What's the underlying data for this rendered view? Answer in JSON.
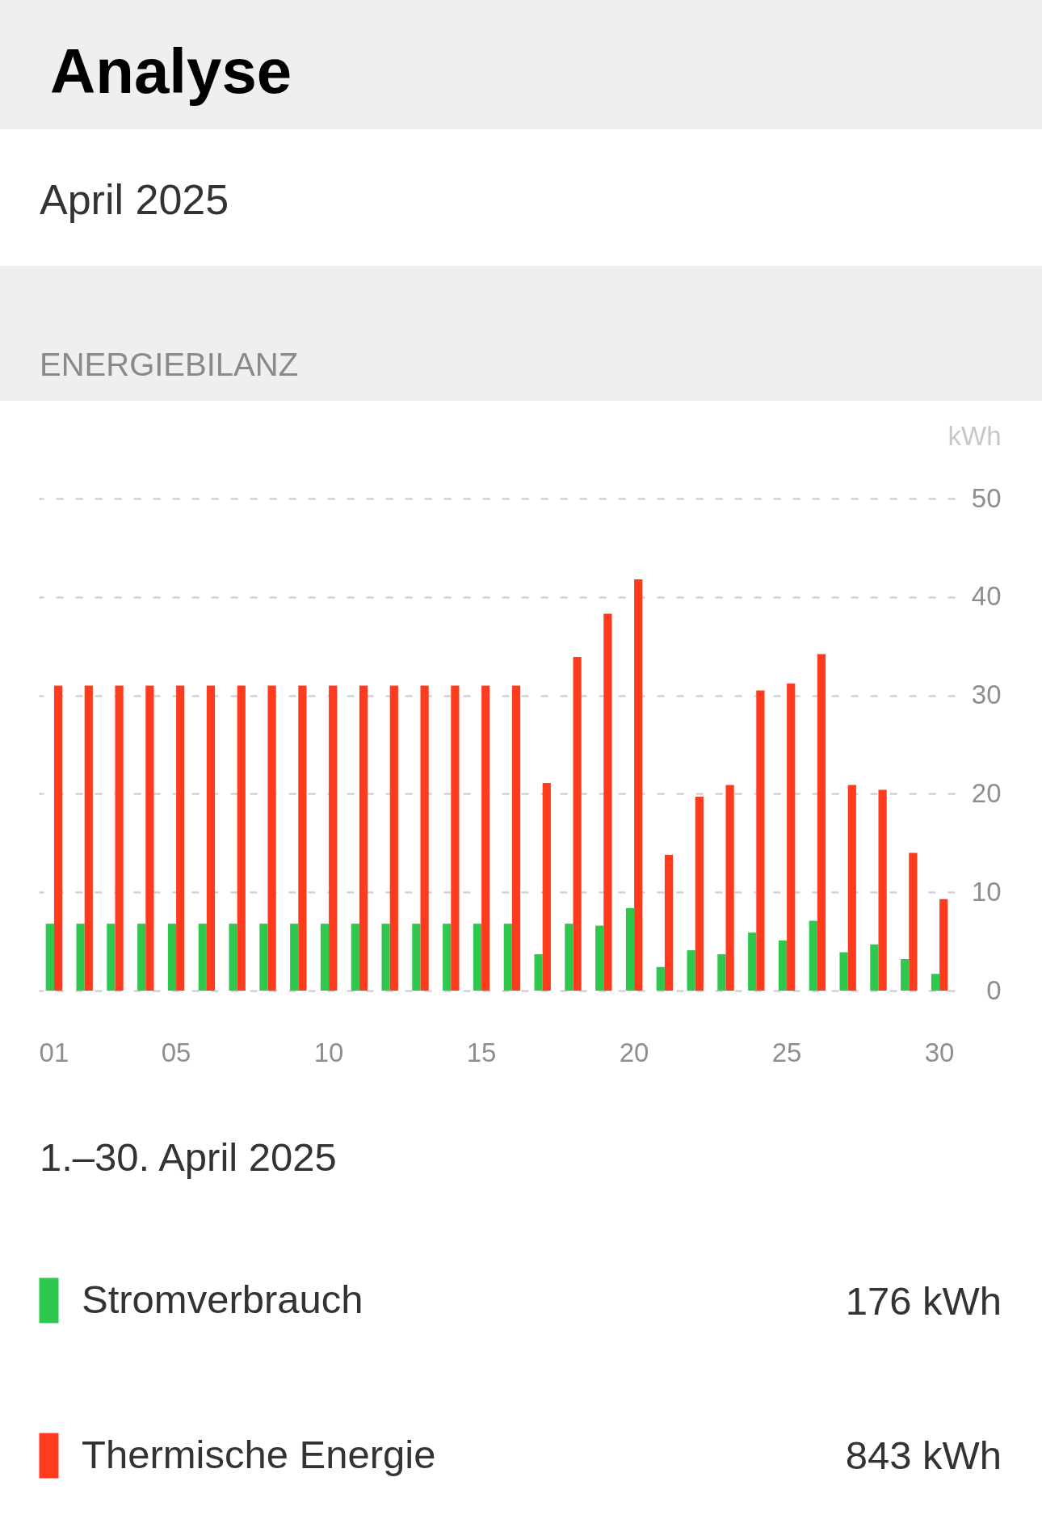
{
  "chart_data": {
    "type": "bar",
    "title": "Analyse",
    "subtitle": "April 2025",
    "ylabel": "kWh",
    "categories": [
      "01",
      null,
      null,
      null,
      "05",
      null,
      null,
      null,
      null,
      "10",
      null,
      null,
      null,
      null,
      "15",
      null,
      null,
      null,
      null,
      "20",
      null,
      null,
      null,
      null,
      "25",
      null,
      null,
      null,
      null,
      "30"
    ],
    "series": [
      {
        "name": "Stromverbrauch",
        "color": "#2dc84d",
        "values": [
          6.8,
          6.8,
          6.8,
          6.8,
          6.8,
          6.8,
          6.8,
          6.8,
          6.8,
          6.8,
          6.8,
          6.8,
          6.8,
          6.8,
          6.8,
          6.8,
          3.7,
          6.8,
          6.6,
          8.4,
          2.4,
          4.1,
          3.7,
          5.9,
          5.1,
          7.1,
          3.9,
          4.7,
          3.2,
          1.7
        ]
      },
      {
        "name": "Thermische Energie",
        "color": "#ff3b1d",
        "values": [
          31,
          31,
          31,
          31,
          31,
          31,
          31,
          31,
          31,
          31,
          31,
          31,
          31,
          31,
          31,
          31,
          21.1,
          33.9,
          38.3,
          41.8,
          13.8,
          19.7,
          20.9,
          30.5,
          31.2,
          34.2,
          20.9,
          20.4,
          14.0,
          9.3
        ]
      }
    ],
    "ylim": [
      0,
      50
    ],
    "yticks": [
      0,
      10,
      20,
      30,
      40,
      50
    ],
    "grid": "y",
    "legend": "bottom",
    "annotations": [
      "ENERGIEBILANZ",
      "1.–30. April 2025",
      "176 kWh",
      "843 kWh"
    ]
  }
}
